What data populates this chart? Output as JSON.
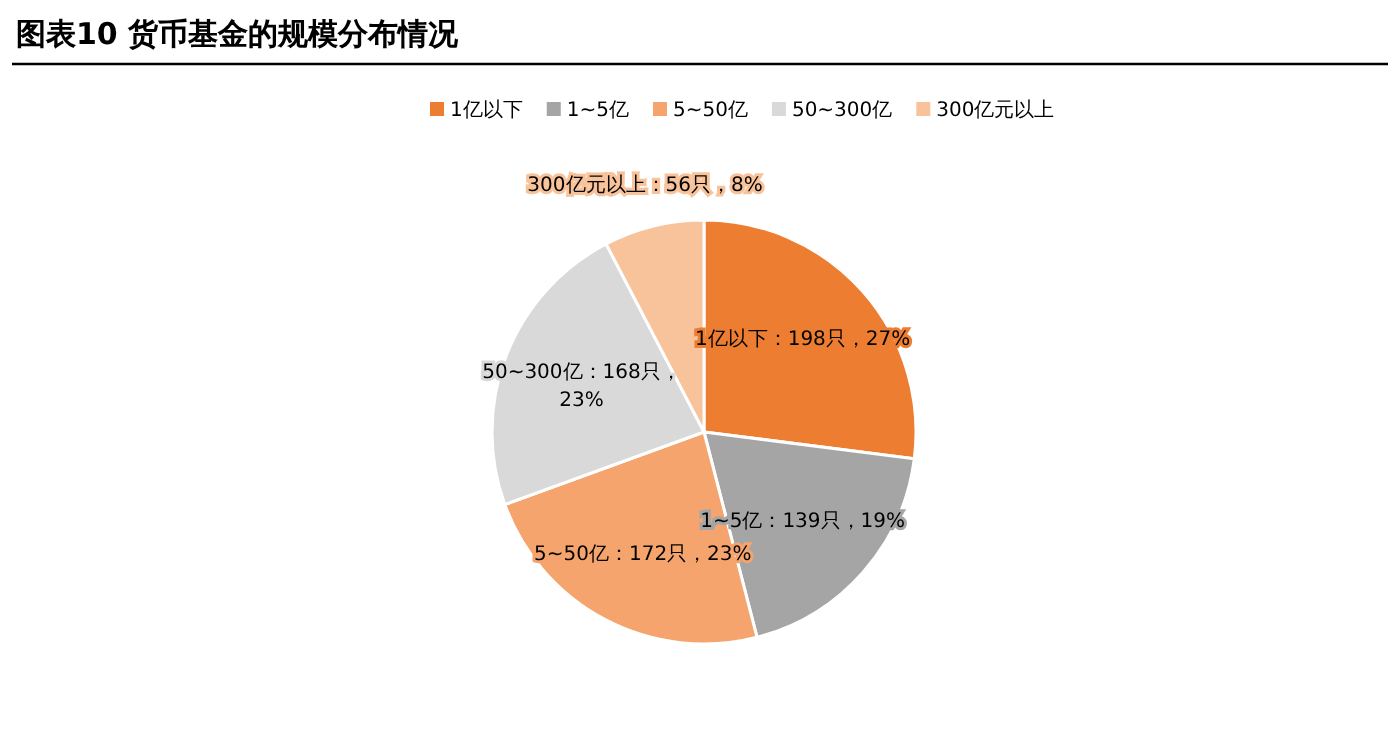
{
  "chart_data": {
    "type": "pie",
    "title": "图表10 货币基金的规模分布情况",
    "categories": [
      "1亿以下",
      "1~5亿",
      "5~50亿",
      "50~300亿",
      "300亿元以上"
    ],
    "values": [
      198,
      139,
      172,
      168,
      56
    ],
    "colors": [
      "#ed7d31",
      "#a5a5a5",
      "#f4a46c",
      "#d9d9d9",
      "#f8c39a"
    ],
    "value_labels": [
      "1亿以下：198只，27%",
      "1~5亿：139只，19%",
      "5~50亿：172只，23%",
      "50~300亿：168只，23%",
      "300亿元以上：56只，8%"
    ],
    "legend": "top"
  }
}
